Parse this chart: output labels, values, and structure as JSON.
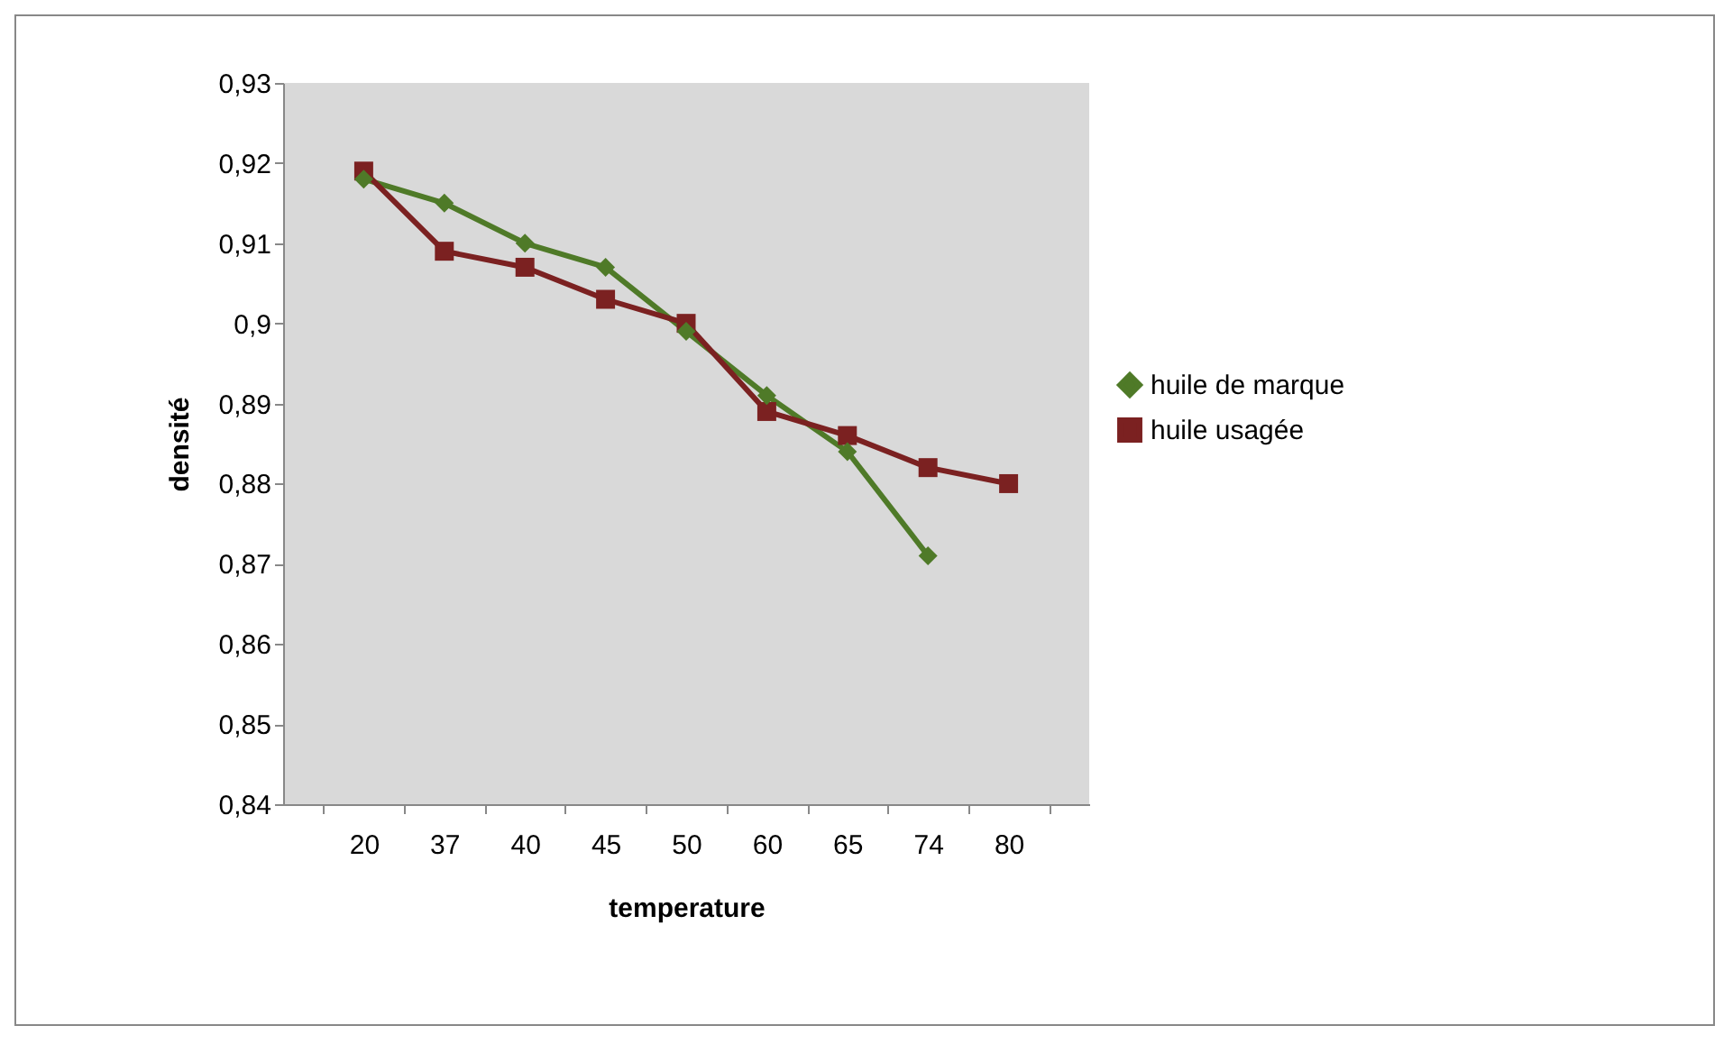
{
  "chart_data": {
    "type": "line",
    "xlabel": "temperature",
    "ylabel": "densité",
    "categories": [
      "20",
      "37",
      "40",
      "45",
      "50",
      "60",
      "65",
      "74",
      "80"
    ],
    "series": [
      {
        "name": "huile de marque",
        "color": "#4f7a28",
        "marker": "diamond",
        "values": [
          0.918,
          0.915,
          0.91,
          0.907,
          0.899,
          0.891,
          0.884,
          0.871,
          null
        ]
      },
      {
        "name": "huile usagée",
        "color": "#7b2121",
        "marker": "square",
        "values": [
          0.919,
          0.909,
          0.907,
          0.903,
          0.9,
          0.889,
          0.886,
          0.882,
          0.88
        ]
      }
    ],
    "ylim": [
      0.84,
      0.93
    ],
    "yticks": [
      {
        "value": 0.84,
        "label": "0,84"
      },
      {
        "value": 0.85,
        "label": "0,85"
      },
      {
        "value": 0.86,
        "label": "0,86"
      },
      {
        "value": 0.87,
        "label": "0,87"
      },
      {
        "value": 0.88,
        "label": "0,88"
      },
      {
        "value": 0.89,
        "label": "0,89"
      },
      {
        "value": 0.9,
        "label": "0,9"
      },
      {
        "value": 0.91,
        "label": "0,91"
      },
      {
        "value": 0.92,
        "label": "0,92"
      },
      {
        "value": 0.93,
        "label": "0,93"
      }
    ],
    "legend": "right",
    "line_style": "solid"
  }
}
